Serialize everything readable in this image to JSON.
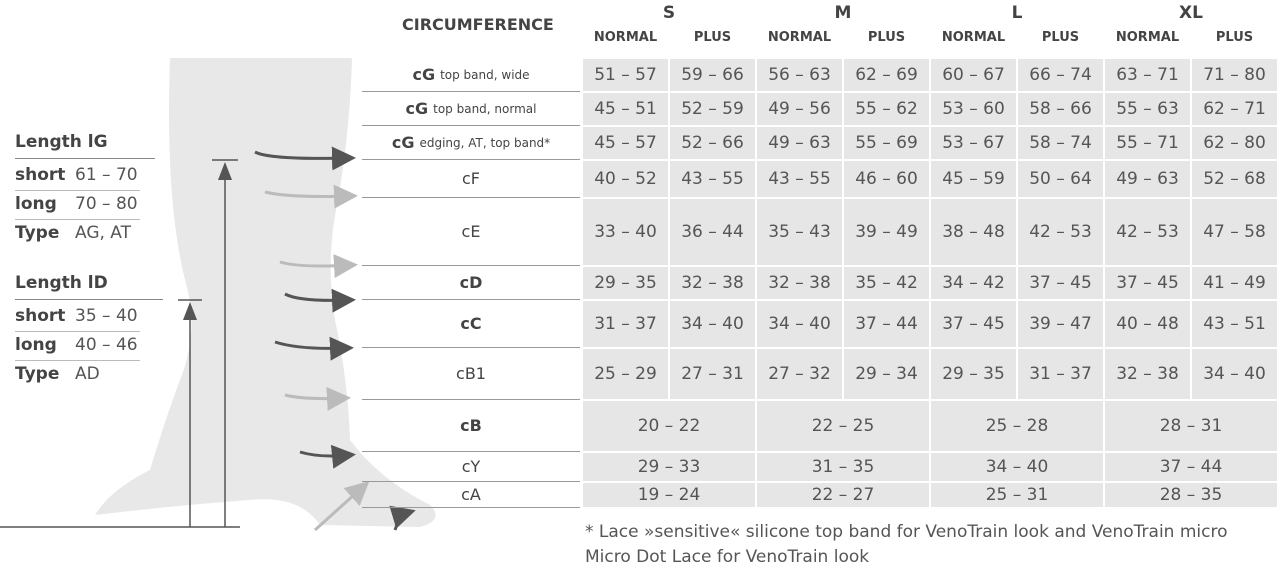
{
  "lengths": [
    {
      "title": "Length lG",
      "rows": [
        {
          "label": "short",
          "value": "61 – 70"
        },
        {
          "label": "long",
          "value": "70 – 80"
        },
        {
          "label": "Type",
          "value": "AG, AT"
        }
      ]
    },
    {
      "title": "Length lD",
      "rows": [
        {
          "label": "short",
          "value": "35 – 40"
        },
        {
          "label": "long",
          "value": "40 – 46"
        },
        {
          "label": "Type",
          "value": "AD"
        }
      ]
    }
  ],
  "table": {
    "header": "CIRCUMFERENCE",
    "sizes": [
      "S",
      "M",
      "L",
      "XL"
    ],
    "subheaders": [
      "NORMAL",
      "PLUS"
    ],
    "rows": [
      {
        "code": "cG",
        "note": "top band, wide",
        "bold": true,
        "cells": [
          "51 – 57",
          "59 – 66",
          "56 – 63",
          "62 – 69",
          "60 – 67",
          "66 – 74",
          "63 – 71",
          "71 – 80"
        ]
      },
      {
        "code": "cG",
        "note": "top band, normal",
        "bold": true,
        "cells": [
          "45 – 51",
          "52 – 59",
          "49 – 56",
          "55 – 62",
          "53 – 60",
          "58 – 66",
          "55 – 63",
          "62 – 71"
        ]
      },
      {
        "code": "cG",
        "note": "edging, AT, top band*",
        "bold": true,
        "cells": [
          "45 – 57",
          "52 – 66",
          "49 – 63",
          "55 – 69",
          "53 – 67",
          "58 – 74",
          "55 – 71",
          "62 – 80"
        ]
      },
      {
        "code": "cF",
        "bold": false,
        "cells": [
          "40 – 52",
          "43 – 55",
          "43 – 55",
          "46 – 60",
          "45 – 59",
          "50 – 64",
          "49 – 63",
          "52 – 68"
        ]
      },
      {
        "code": "cE",
        "bold": false,
        "cells": [
          "33 – 40",
          "36 – 44",
          "35 – 43",
          "39 – 49",
          "38 – 48",
          "42 – 53",
          "42 – 53",
          "47 – 58"
        ]
      },
      {
        "code": "cD",
        "bold": true,
        "cells": [
          "29 – 35",
          "32 – 38",
          "32 – 38",
          "35 – 42",
          "34 – 42",
          "37 – 45",
          "37 – 45",
          "41 – 49"
        ]
      },
      {
        "code": "cC",
        "bold": true,
        "cells": [
          "31 – 37",
          "34 – 40",
          "34 – 40",
          "37 – 44",
          "37 – 45",
          "39 – 47",
          "40 – 48",
          "43 – 51"
        ]
      },
      {
        "code": "cB1",
        "bold": false,
        "cells": [
          "25 – 29",
          "27 – 31",
          "27 – 32",
          "29 – 34",
          "29 – 35",
          "31 – 37",
          "32 – 38",
          "34 – 40"
        ]
      },
      {
        "code": "cB",
        "bold": true,
        "cells": [
          "20 – 22",
          "22 – 25",
          "25 – 28",
          "28 – 31"
        ]
      },
      {
        "code": "cY",
        "bold": false,
        "cells": [
          "29 – 33",
          "31 – 35",
          "34 – 40",
          "37 – 44"
        ]
      },
      {
        "code": "cA",
        "bold": false,
        "cells": [
          "19 – 24",
          "22 – 27",
          "25 – 31",
          "28 – 35"
        ]
      }
    ]
  },
  "footnote": [
    "* Lace »sensitive« silicone top band for VenoTrain look and VenoTrain micro",
    "Micro Dot Lace for VenoTrain look"
  ]
}
